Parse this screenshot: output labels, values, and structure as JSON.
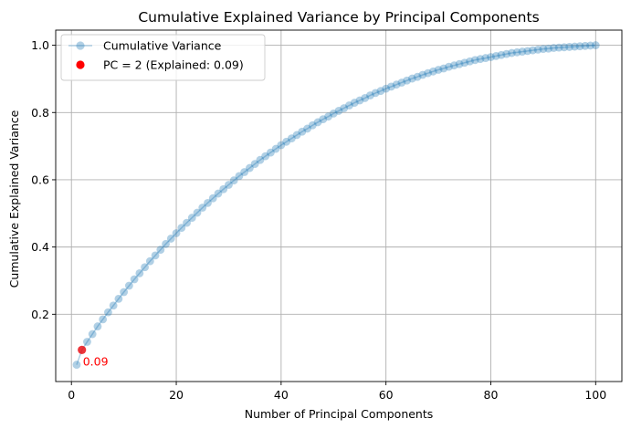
{
  "chart_data": {
    "type": "scatter",
    "title": "Cumulative Explained Variance by Principal Components",
    "xlabel": "Number of Principal Components",
    "ylabel": "Cumulative Explained Variance",
    "xlim": [
      -3,
      105
    ],
    "ylim": [
      0.0,
      1.045
    ],
    "xticks": [
      0,
      20,
      40,
      60,
      80,
      100
    ],
    "xtick_labels": [
      "0",
      "20",
      "40",
      "60",
      "80",
      "100"
    ],
    "yticks": [
      0.2,
      0.4,
      0.6,
      0.8,
      1.0
    ],
    "ytick_labels": [
      "0.2",
      "0.4",
      "0.6",
      "0.8",
      "1.0"
    ],
    "grid": true,
    "legend_position": "top-left",
    "series": [
      {
        "name": "Cumulative Variance",
        "style": "line+marker",
        "color": "#1f77b4",
        "alpha": 0.35,
        "x": [
          1,
          2,
          3,
          4,
          5,
          6,
          7,
          8,
          9,
          10,
          11,
          12,
          13,
          14,
          15,
          16,
          17,
          18,
          19,
          20,
          21,
          22,
          23,
          24,
          25,
          26,
          27,
          28,
          29,
          30,
          31,
          32,
          33,
          34,
          35,
          36,
          37,
          38,
          39,
          40,
          41,
          42,
          43,
          44,
          45,
          46,
          47,
          48,
          49,
          50,
          51,
          52,
          53,
          54,
          55,
          56,
          57,
          58,
          59,
          60,
          61,
          62,
          63,
          64,
          65,
          66,
          67,
          68,
          69,
          70,
          71,
          72,
          73,
          74,
          75,
          76,
          77,
          78,
          79,
          80,
          81,
          82,
          83,
          84,
          85,
          86,
          87,
          88,
          89,
          90,
          91,
          92,
          93,
          94,
          95,
          96,
          97,
          98,
          99,
          100
        ],
        "y": [
          0.05,
          0.094,
          0.118,
          0.141,
          0.164,
          0.185,
          0.206,
          0.226,
          0.246,
          0.266,
          0.285,
          0.304,
          0.322,
          0.34,
          0.358,
          0.375,
          0.392,
          0.409,
          0.425,
          0.441,
          0.457,
          0.472,
          0.487,
          0.502,
          0.517,
          0.531,
          0.545,
          0.559,
          0.572,
          0.585,
          0.598,
          0.611,
          0.623,
          0.635,
          0.647,
          0.659,
          0.67,
          0.681,
          0.692,
          0.703,
          0.713,
          0.723,
          0.733,
          0.743,
          0.752,
          0.762,
          0.771,
          0.78,
          0.788,
          0.797,
          0.805,
          0.813,
          0.821,
          0.829,
          0.836,
          0.843,
          0.851,
          0.858,
          0.864,
          0.871,
          0.877,
          0.883,
          0.889,
          0.895,
          0.901,
          0.906,
          0.912,
          0.917,
          0.922,
          0.927,
          0.931,
          0.936,
          0.94,
          0.944,
          0.948,
          0.952,
          0.956,
          0.959,
          0.962,
          0.965,
          0.968,
          0.971,
          0.974,
          0.977,
          0.979,
          0.981,
          0.983,
          0.985,
          0.987,
          0.989,
          0.99,
          0.992,
          0.993,
          0.994,
          0.995,
          0.996,
          0.997,
          0.998,
          0.999,
          1.0
        ]
      },
      {
        "name": "PC = 2 (Explained: 0.09)",
        "style": "marker",
        "color": "#ff0000",
        "x": [
          2
        ],
        "y": [
          0.094
        ]
      }
    ],
    "annotations": [
      {
        "text": "0.09",
        "x": 2,
        "y": 0.094,
        "color": "#ff0000"
      }
    ]
  }
}
